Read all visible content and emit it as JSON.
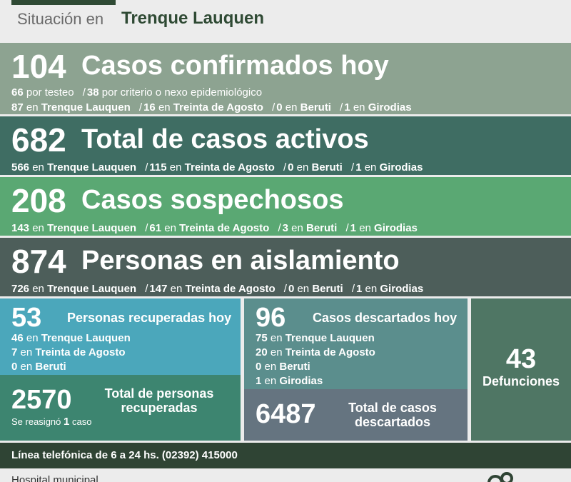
{
  "header": {
    "label": "Situación en",
    "city": "Trenque Lauquen"
  },
  "confirmed": {
    "number": "104",
    "title": "Casos confirmados hoy",
    "by_test": "66",
    "by_test_label": "por testeo",
    "by_criteria": "38",
    "by_criteria_label": "por criterio o nexo epidemiológico",
    "by_city": [
      {
        "value": "87",
        "name": "Trenque Lauquen"
      },
      {
        "value": "16",
        "name": "Treinta de Agosto"
      },
      {
        "value": "0",
        "name": "Beruti"
      },
      {
        "value": "1",
        "name": "Girodias"
      }
    ]
  },
  "active": {
    "number": "682",
    "title": "Total de casos activos",
    "by_city": [
      {
        "value": "566",
        "name": "Trenque Lauquen"
      },
      {
        "value": "115",
        "name": "Treinta de Agosto"
      },
      {
        "value": "0",
        "name": "Beruti"
      },
      {
        "value": "1",
        "name": "Girodias"
      }
    ]
  },
  "suspected": {
    "number": "208",
    "title": "Casos sospechosos",
    "by_city": [
      {
        "value": "143",
        "name": "Trenque Lauquen"
      },
      {
        "value": "61",
        "name": "Treinta de Agosto"
      },
      {
        "value": "3",
        "name": "Beruti"
      },
      {
        "value": "1",
        "name": "Girodias"
      }
    ]
  },
  "isolation": {
    "number": "874",
    "title": "Personas en aislamiento",
    "by_city": [
      {
        "value": "726",
        "name": "Trenque Lauquen"
      },
      {
        "value": "147",
        "name": "Treinta de Agosto"
      },
      {
        "value": "0",
        "name": "Beruti"
      },
      {
        "value": "1",
        "name": "Girodias"
      }
    ]
  },
  "connector": "en",
  "recovered_today": {
    "number": "53",
    "title": "Personas recuperadas hoy",
    "by_city": [
      {
        "value": "46",
        "name": "Trenque Lauquen"
      },
      {
        "value": "7",
        "name": "Treinta de Agosto"
      },
      {
        "value": "0",
        "name": "Beruti"
      }
    ]
  },
  "recovered_total": {
    "number": "2570",
    "title_line1": "Total de personas",
    "title_line2": "recuperadas",
    "note_prefix": "Se reasignó",
    "note_value": "1",
    "note_suffix": "caso"
  },
  "discarded_today": {
    "number": "96",
    "title": "Casos descartados hoy",
    "by_city": [
      {
        "value": "75",
        "name": "Trenque Lauquen"
      },
      {
        "value": "20",
        "name": "Treinta de Agosto"
      },
      {
        "value": "0",
        "name": "Beruti"
      },
      {
        "value": "1",
        "name": "Girodias"
      }
    ]
  },
  "discarded_total": {
    "number": "6487",
    "title_line1": "Total de casos",
    "title_line2": "descartados"
  },
  "deaths": {
    "number": "43",
    "title": "Defunciones"
  },
  "phone_line": "Línea telefónica de 6 a 24 hs. (02392) 415000",
  "footer": {
    "hospital": "Hospital municipal",
    "logo_icon": "municipal-logo-icon"
  }
}
